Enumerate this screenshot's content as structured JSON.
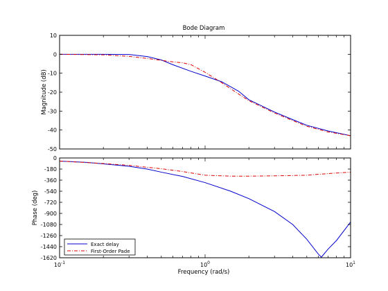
{
  "chart_data": {
    "type": "line",
    "title": "Bode Diagram",
    "xlabel": "Frequency  (rad/s)",
    "xscale": "log",
    "xlim": [
      0.1,
      10
    ],
    "xticks": [
      {
        "base": "10",
        "exp": "-1"
      },
      {
        "base": "10",
        "exp": "0"
      },
      {
        "base": "10",
        "exp": "1"
      }
    ],
    "legend_location": "bottom-left",
    "panels": [
      {
        "ylabel": "Magnitude (dB)",
        "ylim": [
          -50,
          10
        ],
        "yticks": [
          "10",
          "0",
          "-10",
          "-20",
          "-30",
          "-40",
          "-50"
        ],
        "series": [
          {
            "name": "Exact delay",
            "color": "#0000cc",
            "dash": "solid",
            "x": [
              0.1,
              0.2,
              0.3,
              0.4,
              0.5,
              0.6,
              0.8,
              1.0,
              1.3,
              1.7,
              2.0,
              3.0,
              4.0,
              5.0,
              7.0,
              10.0
            ],
            "y": [
              0.0,
              0.0,
              -0.1,
              -1.2,
              -3.0,
              -5.5,
              -9.0,
              -11.5,
              -14.5,
              -19.5,
              -24.0,
              -30.5,
              -34.5,
              -37.5,
              -40.5,
              -43.0
            ]
          },
          {
            "name": "First-Order Pade",
            "color": "#dd0000",
            "dash": "dashdot",
            "x": [
              0.1,
              0.2,
              0.3,
              0.4,
              0.5,
              0.6,
              0.7,
              0.8,
              1.0,
              1.3,
              1.7,
              2.0,
              3.0,
              4.0,
              5.0,
              7.0,
              10.0
            ],
            "y": [
              0.0,
              -0.3,
              -1.1,
              -2.2,
              -3.2,
              -4.0,
              -4.5,
              -5.5,
              -9.5,
              -15.0,
              -21.0,
              -24.5,
              -31.0,
              -35.0,
              -38.0,
              -41.0,
              -43.0
            ]
          }
        ]
      },
      {
        "ylabel": "Phase (deg)",
        "ylim": [
          -1620,
          0
        ],
        "yticks": [
          "0",
          "-180",
          "-360",
          "-540",
          "-720",
          "-900",
          "-1080",
          "-1260",
          "-1440",
          "-1620"
        ],
        "series": [
          {
            "name": "Exact delay",
            "color": "#0000cc",
            "dash": "solid",
            "x": [
              0.1,
              0.15,
              0.2,
              0.3,
              0.4,
              0.5,
              0.7,
              1.0,
              1.5,
              2.0,
              3.0,
              4.0,
              5.0,
              6.0,
              6.3,
              7.0,
              8.0,
              10.0
            ],
            "y": [
              -50,
              -70,
              -95,
              -135,
              -180,
              -230,
              -300,
              -400,
              -540,
              -660,
              -870,
              -1080,
              -1320,
              -1560,
              -1610,
              -1480,
              -1340,
              -1040
            ]
          },
          {
            "name": "First-Order Pade",
            "color": "#dd0000",
            "dash": "dashdot",
            "x": [
              0.1,
              0.2,
              0.3,
              0.5,
              0.7,
              1.0,
              1.5,
              2.0,
              3.0,
              4.0,
              5.0,
              6.0,
              8.0,
              10.0
            ],
            "y": [
              -50,
              -90,
              -120,
              -175,
              -220,
              -280,
              -295,
              -295,
              -290,
              -285,
              -280,
              -265,
              -245,
              -230
            ]
          }
        ]
      }
    ]
  }
}
